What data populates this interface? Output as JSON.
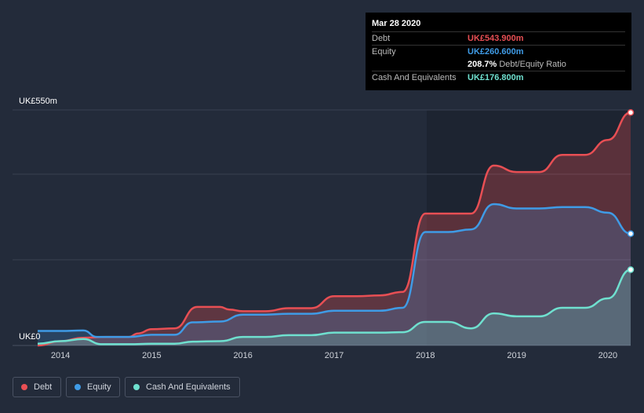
{
  "chart_data": {
    "type": "area",
    "y_unit_label_top": "UK£550m",
    "y_unit_label_bottom": "UK£0",
    "ylim": [
      0,
      550
    ],
    "xlim": [
      2013.75,
      2020.25
    ],
    "x_ticks": [
      2014,
      2015,
      2016,
      2017,
      2018,
      2019,
      2020
    ],
    "x_tick_labels": [
      "2014",
      "2015",
      "2016",
      "2017",
      "2018",
      "2019",
      "2020"
    ],
    "series": [
      {
        "name": "Debt",
        "color": "#e84f54",
        "points": [
          [
            2013.75,
            0
          ],
          [
            2014.0,
            10
          ],
          [
            2014.25,
            18
          ],
          [
            2014.5,
            20
          ],
          [
            2014.75,
            20
          ],
          [
            2014.85,
            28
          ],
          [
            2015.0,
            38
          ],
          [
            2015.25,
            40
          ],
          [
            2015.5,
            90
          ],
          [
            2015.75,
            90
          ],
          [
            2015.85,
            84
          ],
          [
            2016.0,
            80
          ],
          [
            2016.25,
            80
          ],
          [
            2016.5,
            87
          ],
          [
            2016.75,
            87
          ],
          [
            2017.0,
            115
          ],
          [
            2017.25,
            115
          ],
          [
            2017.5,
            117
          ],
          [
            2017.75,
            125
          ],
          [
            2018.0,
            308
          ],
          [
            2018.25,
            308
          ],
          [
            2018.5,
            308
          ],
          [
            2018.75,
            420
          ],
          [
            2019.0,
            405
          ],
          [
            2019.25,
            405
          ],
          [
            2019.5,
            445
          ],
          [
            2019.75,
            445
          ],
          [
            2020.0,
            480
          ],
          [
            2020.25,
            544
          ]
        ]
      },
      {
        "name": "Equity",
        "color": "#3f9be6",
        "points": [
          [
            2013.75,
            34
          ],
          [
            2014.0,
            34
          ],
          [
            2014.25,
            35
          ],
          [
            2014.4,
            20
          ],
          [
            2014.75,
            20
          ],
          [
            2015.0,
            25
          ],
          [
            2015.25,
            25
          ],
          [
            2015.45,
            54
          ],
          [
            2015.75,
            56
          ],
          [
            2016.0,
            72
          ],
          [
            2016.25,
            72
          ],
          [
            2016.5,
            74
          ],
          [
            2016.75,
            74
          ],
          [
            2017.0,
            81
          ],
          [
            2017.25,
            81
          ],
          [
            2017.5,
            81
          ],
          [
            2017.75,
            88
          ],
          [
            2018.0,
            265
          ],
          [
            2018.25,
            265
          ],
          [
            2018.5,
            271
          ],
          [
            2018.75,
            330
          ],
          [
            2019.0,
            320
          ],
          [
            2019.25,
            320
          ],
          [
            2019.5,
            323
          ],
          [
            2019.75,
            323
          ],
          [
            2020.0,
            310
          ],
          [
            2020.25,
            261
          ]
        ]
      },
      {
        "name": "Cash And Equivalents",
        "color": "#6fe0cf",
        "points": [
          [
            2013.75,
            4
          ],
          [
            2014.0,
            10
          ],
          [
            2014.25,
            15
          ],
          [
            2014.45,
            3
          ],
          [
            2014.75,
            3
          ],
          [
            2015.0,
            4
          ],
          [
            2015.25,
            4
          ],
          [
            2015.45,
            9
          ],
          [
            2015.75,
            10
          ],
          [
            2016.0,
            20
          ],
          [
            2016.25,
            20
          ],
          [
            2016.5,
            24
          ],
          [
            2016.75,
            24
          ],
          [
            2017.0,
            30
          ],
          [
            2017.25,
            30
          ],
          [
            2017.5,
            30
          ],
          [
            2017.75,
            31
          ],
          [
            2018.0,
            55
          ],
          [
            2018.25,
            55
          ],
          [
            2018.5,
            40
          ],
          [
            2018.75,
            75
          ],
          [
            2019.0,
            68
          ],
          [
            2019.25,
            68
          ],
          [
            2019.5,
            88
          ],
          [
            2019.75,
            88
          ],
          [
            2020.0,
            110
          ],
          [
            2020.25,
            177
          ]
        ]
      }
    ]
  },
  "tooltip": {
    "date": "Mar 28 2020",
    "debt_label": "Debt",
    "debt_value": "UK£543.900m",
    "equity_label": "Equity",
    "equity_value": "UK£260.600m",
    "ratio_value": "208.7%",
    "ratio_label": "Debt/Equity Ratio",
    "cash_label": "Cash And Equivalents",
    "cash_value": "UK£176.800m",
    "debt_color": "#e84f54",
    "equity_color": "#3f9be6",
    "cash_color": "#6fe0cf"
  },
  "legend": {
    "debt": "Debt",
    "equity": "Equity",
    "cash": "Cash And Equivalents"
  }
}
